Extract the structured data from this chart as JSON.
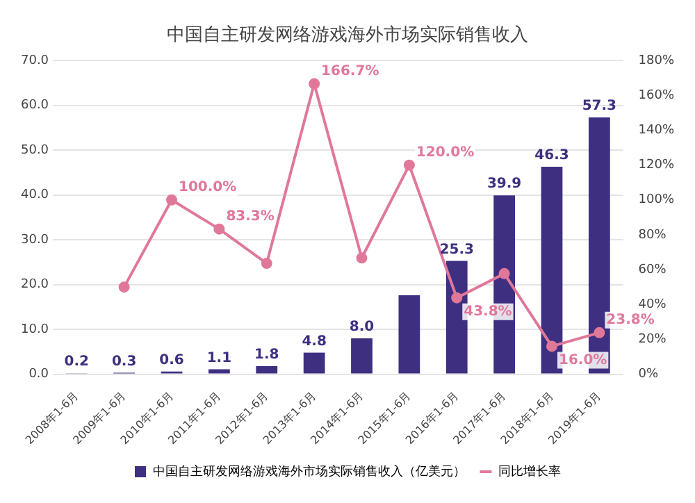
{
  "chart_data": {
    "type": "bar",
    "title": "中国自主研发网络游戏海外市场实际销售收入",
    "categories": [
      "2008年1-6月",
      "2009年1-6月",
      "2010年1-6月",
      "2011年1-6月",
      "2012年1-6月",
      "2013年1-6月",
      "2014年1-6月",
      "2015年1-6月",
      "2016年1-6月",
      "2017年1-6月",
      "2018年1-6月",
      "2019年1-6月"
    ],
    "series": [
      {
        "name": "中国自主研发网络游戏海外市场实际销售收入（亿美元）",
        "color": "#3f2f80",
        "values": [
          0.2,
          0.3,
          0.6,
          1.1,
          1.8,
          4.8,
          8.0,
          17.6,
          25.3,
          39.9,
          46.3,
          57.3
        ],
        "value_labels": [
          "0.2",
          "0.3",
          "0.6",
          "1.1",
          "1.8",
          "4.8",
          "8.0",
          null,
          "25.3",
          "39.9",
          "46.3",
          "57.3"
        ]
      },
      {
        "name": "同比增长率",
        "type": "line",
        "axis": "y2",
        "color": "#e0789a",
        "values": [
          null,
          50.0,
          100.0,
          83.3,
          63.6,
          166.7,
          66.7,
          120.0,
          43.8,
          57.7,
          16.0,
          23.8
        ],
        "value_labels": [
          null,
          null,
          "100.0%",
          "83.3%",
          null,
          "166.7%",
          null,
          "120.0%",
          "43.8%",
          null,
          "16.0%",
          "23.8%"
        ]
      }
    ],
    "ylim": [
      0,
      70
    ],
    "yticks": [
      {
        "value": 0,
        "label": "0.0"
      },
      {
        "value": 10,
        "label": "10.0"
      },
      {
        "value": 20,
        "label": "20.0"
      },
      {
        "value": 30,
        "label": "30.0"
      },
      {
        "value": 40,
        "label": "40.0"
      },
      {
        "value": 50,
        "label": "50.0"
      },
      {
        "value": 60,
        "label": "60.0"
      },
      {
        "value": 70,
        "label": "70.0"
      }
    ],
    "y2lim": [
      0,
      180
    ],
    "y2ticks": [
      {
        "value": 0,
        "label": "0%"
      },
      {
        "value": 20,
        "label": "20%"
      },
      {
        "value": 40,
        "label": "40%"
      },
      {
        "value": 60,
        "label": "60%"
      },
      {
        "value": 80,
        "label": "80%"
      },
      {
        "value": 100,
        "label": "100%"
      },
      {
        "value": 120,
        "label": "120%"
      },
      {
        "value": 140,
        "label": "140%"
      },
      {
        "value": 160,
        "label": "160%"
      },
      {
        "value": 180,
        "label": "180%"
      }
    ],
    "grid": "y",
    "legend": "bottom",
    "marker": "circle"
  }
}
